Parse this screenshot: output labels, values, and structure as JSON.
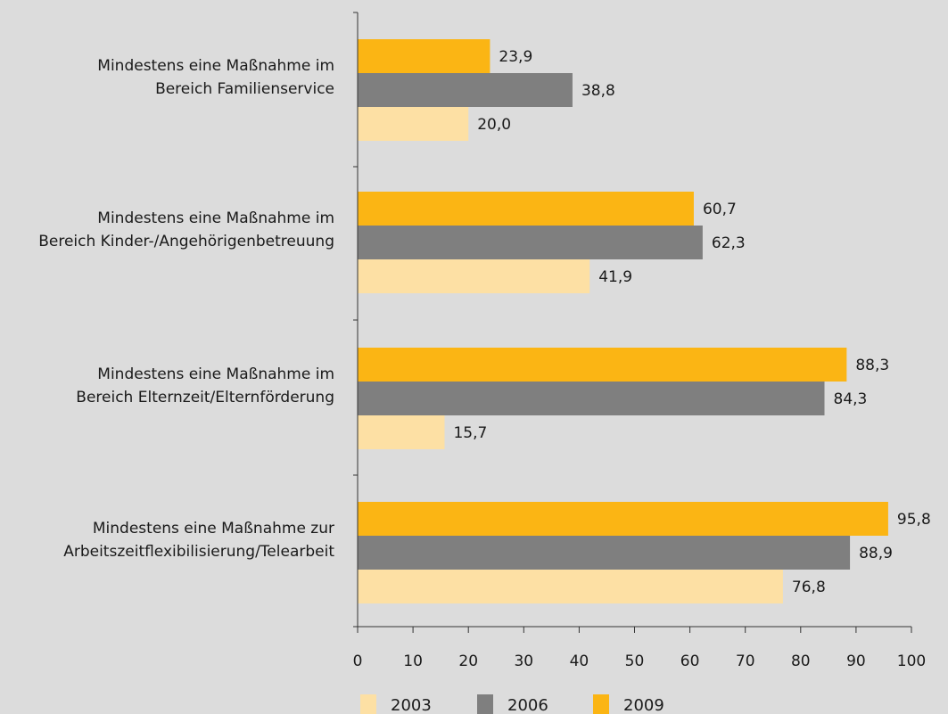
{
  "chart_data": {
    "type": "bar",
    "orientation": "horizontal",
    "categories": [
      [
        "Mindestens eine Maßnahme im",
        "Bereich Familienservice"
      ],
      [
        "Mindestens eine Maßnahme im",
        "Bereich Kinder-/Angehörigenbetreuung"
      ],
      [
        "Mindestens eine Maßnahme im",
        "Bereich Elternzeit/Elternförderung"
      ],
      [
        "Mindestens eine Maßnahme zur",
        "Arbeitszeitflexibilisierung/Telearbeit"
      ]
    ],
    "series": [
      {
        "name": "2009",
        "color": "#fbb514",
        "values": [
          23.9,
          60.7,
          88.3,
          95.8
        ],
        "labels": [
          "23,9",
          "60,7",
          "88,3",
          "95,8"
        ]
      },
      {
        "name": "2006",
        "color": "#7f7f7f",
        "values": [
          38.8,
          62.3,
          84.3,
          88.9
        ],
        "labels": [
          "38,8",
          "62,3",
          "84,3",
          "88,9"
        ]
      },
      {
        "name": "2003",
        "color": "#fde0a4",
        "values": [
          20.0,
          41.9,
          15.7,
          76.8
        ],
        "labels": [
          "20,0",
          "41,9",
          "15,7",
          "76,8"
        ]
      }
    ],
    "xlim": [
      0,
      100
    ],
    "xticks": [
      0,
      10,
      20,
      30,
      40,
      50,
      60,
      70,
      80,
      90,
      100
    ],
    "legend": {
      "position": "bottom",
      "entries": [
        {
          "name": "2003",
          "color": "#fde0a4"
        },
        {
          "name": "2006",
          "color": "#7f7f7f"
        },
        {
          "name": "2009",
          "color": "#fbb514"
        }
      ]
    },
    "grid": false,
    "title": "",
    "xlabel": "",
    "ylabel": ""
  }
}
